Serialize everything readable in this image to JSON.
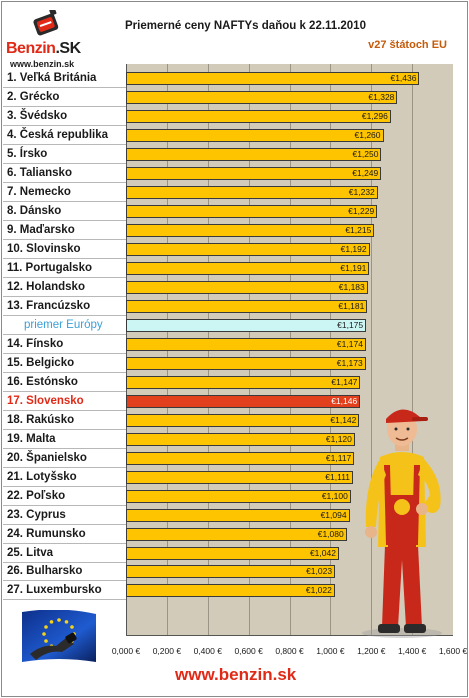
{
  "logo": {
    "brand": "Benzin",
    "suffix": ".SK",
    "url": "www.benzin.sk",
    "icon": "fuel-can-icon"
  },
  "header": {
    "title": "Priemerné ceny NAFTYs daňou k 22.11.2010",
    "subtitle": "v27 štátoch EU"
  },
  "footer": {
    "url": "www.benzin.sk"
  },
  "colors": {
    "bar": "#ffc400",
    "europe_bar": "#ccf6f3",
    "slovakia_bar": "#e2401c",
    "plot_background": "#d3cbba",
    "accent": "#e02a17"
  },
  "chart_data": {
    "type": "bar",
    "orientation": "horizontal",
    "title": "Priemerné ceny NAFTYs daňou k 22.11.2010",
    "subtitle": "v27 štátoch EU",
    "xlim": [
      0,
      1.6
    ],
    "grid": true,
    "x_tick_labels": [
      "0,000 €",
      "0,200 €",
      "0,400 €",
      "0,600 €",
      "0,800 €",
      "1,000 €",
      "1,200 €",
      "1,400 €",
      "1,600 €"
    ],
    "x_ticks": [
      0,
      0.2,
      0.4,
      0.6,
      0.8,
      1.0,
      1.2,
      1.4,
      1.6
    ],
    "categories": [
      "1. Veľká Británia",
      "2. Grécko",
      "3. Švédsko",
      "4. Česká republika",
      "5. Írsko",
      "6. Taliansko",
      "7. Nemecko",
      "8. Dánsko",
      "9. Maďarsko",
      "10. Slovinsko",
      "11. Portugalsko",
      "12. Holandsko",
      "13. Francúzsko",
      "priemer Európy",
      "14. Fínsko",
      "15. Belgicko",
      "16. Estónsko",
      "17. Slovensko",
      "18. Rakúsko",
      "19. Malta",
      "20. Španielsko",
      "21. Lotyšsko",
      "22. Poľsko",
      "23. Cyprus",
      "24. Rumunsko",
      "25. Litva",
      "26. Bulharsko",
      "27. Luxembursko"
    ],
    "values": [
      1.436,
      1.328,
      1.296,
      1.26,
      1.25,
      1.249,
      1.232,
      1.229,
      1.215,
      1.192,
      1.191,
      1.183,
      1.181,
      1.175,
      1.174,
      1.173,
      1.147,
      1.146,
      1.142,
      1.12,
      1.117,
      1.111,
      1.1,
      1.094,
      1.08,
      1.042,
      1.023,
      1.022
    ],
    "value_labels": [
      "€1,436",
      "€1,328",
      "€1,296",
      "€1,260",
      "€1,250",
      "€1,249",
      "€1,232",
      "€1,229",
      "€1,215",
      "€1,192",
      "€1,191",
      "€1,183",
      "€1,181",
      "€1,175",
      "€1,174",
      "€1,173",
      "€1,147",
      "€1,146",
      "€1,142",
      "€1,120",
      "€1,117",
      "€1,111",
      "€1,100",
      "€1,094",
      "€1,080",
      "€1,042",
      "€1,023",
      "€1,022"
    ],
    "highlight": {
      "europe_average_index": 13,
      "slovakia_index": 17
    }
  }
}
